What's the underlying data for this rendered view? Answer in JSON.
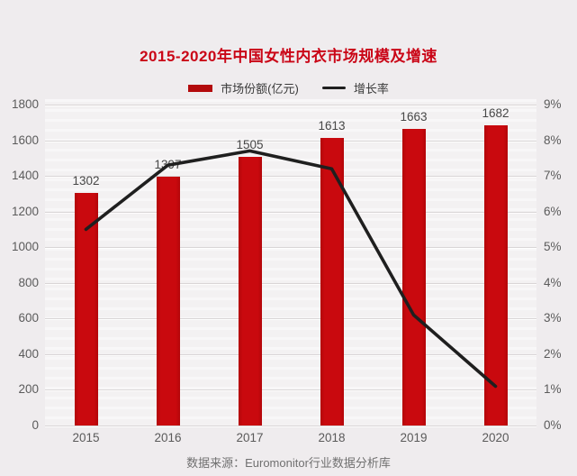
{
  "page": {
    "title": "2015-2020年中国女性内衣市场规模及增速",
    "source_note": "数据来源：Euromonitor行业数据分析库"
  },
  "legend": {
    "items": [
      {
        "label": "市场份额(亿元)",
        "marker": "red-bar-swatch"
      },
      {
        "label": "增长率",
        "marker": "black-line-swatch"
      }
    ]
  },
  "chart_data": {
    "type": "bar",
    "title": "2015-2020年中国女性内衣市场规模及增速",
    "categories": [
      "2015",
      "2016",
      "2017",
      "2018",
      "2019",
      "2020"
    ],
    "series": [
      {
        "name": "市场份额(亿元)",
        "type": "bar",
        "axis": "left",
        "values": [
          1302,
          1397,
          1505,
          1613,
          1663,
          1682
        ]
      },
      {
        "name": "增长率",
        "type": "line",
        "axis": "right",
        "values": [
          5.5,
          7.3,
          7.7,
          7.2,
          3.1,
          1.1
        ]
      }
    ],
    "left_axis": {
      "min": 0,
      "max": 1800,
      "step": 200,
      "tick_labels": [
        "1800",
        "1600",
        "1400",
        "1200",
        "1000",
        "800",
        "600",
        "400",
        "200",
        "0"
      ]
    },
    "right_axis": {
      "min": 0,
      "max": 9,
      "step": 1,
      "tick_labels": [
        "9%",
        "8%",
        "7%",
        "6%",
        "5%",
        "4%",
        "3%",
        "2%",
        "1%",
        "0%"
      ]
    },
    "grid": true,
    "legend_position": "top",
    "bar_value_labels_shown": true,
    "line_value_labels_shown": false
  },
  "colors": {
    "background": "#efecee",
    "plot_background": "#f3f1f2",
    "title_red": "#ca0617",
    "bar_red": "#c9090e",
    "legend_swatch_red": "#b30a0c",
    "line_black": "#1f1f1f",
    "gridline": "#d9d5d6",
    "tick_text": "#5b5b5b",
    "value_label_text": "#474747",
    "source_text": "#707070"
  }
}
